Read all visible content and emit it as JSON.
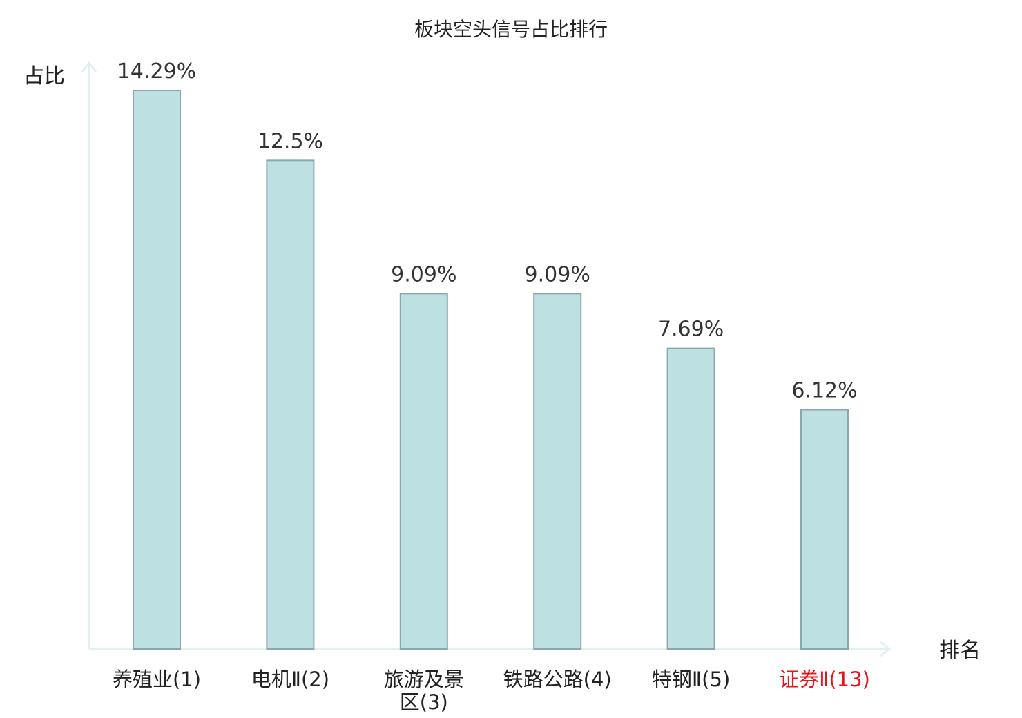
{
  "chart_data": {
    "type": "bar",
    "title": "板块空头信号占比排行",
    "xlabel": "排名",
    "ylabel": "占比",
    "categories": [
      "养殖业(1)",
      "电机Ⅱ(2)",
      "旅游及景区(3)",
      "铁路公路(4)",
      "特钢Ⅱ(5)",
      "证券Ⅱ(13)"
    ],
    "category_lines": [
      [
        "养殖业(1)"
      ],
      [
        "电机Ⅱ(2)"
      ],
      [
        "旅游及景",
        "区(3)"
      ],
      [
        "铁路公路(4)"
      ],
      [
        "特钢Ⅱ(5)"
      ],
      [
        "证券Ⅱ(13)"
      ]
    ],
    "values": [
      14.29,
      12.5,
      9.09,
      9.09,
      7.69,
      6.12
    ],
    "value_labels": [
      "14.29%",
      "12.5%",
      "9.09%",
      "9.09%",
      "7.69%",
      "6.12%"
    ],
    "highlight_index": 5,
    "ylim": [
      0,
      14.29
    ],
    "grid": false,
    "legend": "none"
  },
  "colors": {
    "bar_fill": "#bde0e3",
    "bar_stroke": "#8aa8ab",
    "axis": "#e0f2f0",
    "text": "#222222",
    "highlight_text": "#e8141c"
  }
}
